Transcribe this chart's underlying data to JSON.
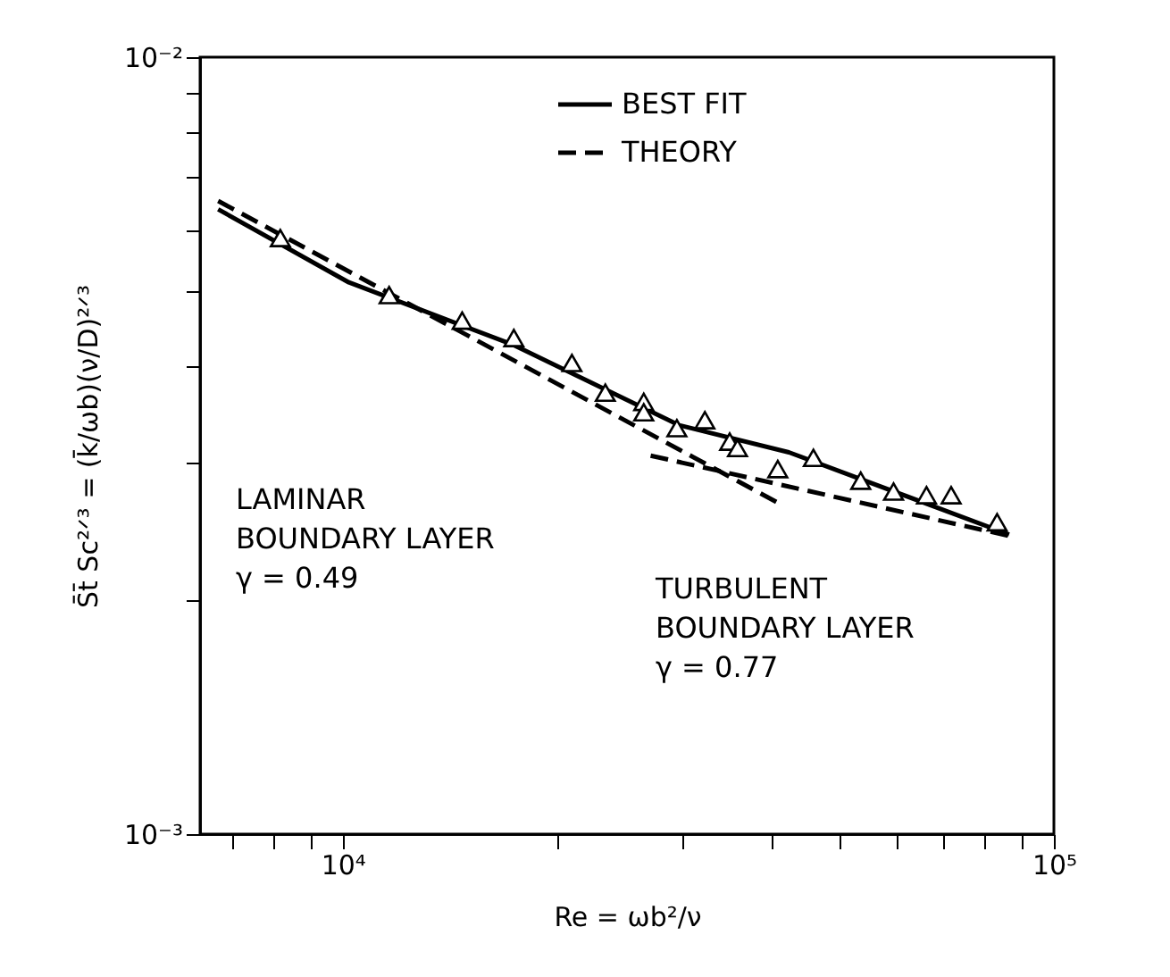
{
  "chart_data": {
    "type": "scatter",
    "xlabel": "Re = ωb²/ν",
    "ylabel": "S̄t̄ Sc²ᐟ³ = (k̄/ωb)(ν/D)²ᐟ³",
    "log": "xy",
    "xlim": [
      6300,
      100000
    ],
    "xticks": [
      {
        "value": 7000,
        "label": null
      },
      {
        "value": 8000,
        "label": null
      },
      {
        "value": 9000,
        "label": null
      },
      {
        "value": 10000,
        "label": "10⁴"
      },
      {
        "value": 20000,
        "label": null
      },
      {
        "value": 30000,
        "label": null
      },
      {
        "value": 40000,
        "label": null
      },
      {
        "value": 50000,
        "label": null
      },
      {
        "value": 60000,
        "label": null
      },
      {
        "value": 70000,
        "label": null
      },
      {
        "value": 80000,
        "label": null
      },
      {
        "value": 90000,
        "label": null
      },
      {
        "value": 100000,
        "label": "10⁵"
      }
    ],
    "ylim": [
      0.001,
      0.01
    ],
    "yticks": [
      {
        "value": 0.001,
        "label": "10⁻³"
      },
      {
        "value": 0.002,
        "label": null
      },
      {
        "value": 0.003,
        "label": null
      },
      {
        "value": 0.004,
        "label": null
      },
      {
        "value": 0.005,
        "label": null
      },
      {
        "value": 0.006,
        "label": null
      },
      {
        "value": 0.007,
        "label": null
      },
      {
        "value": 0.008,
        "label": null
      },
      {
        "value": 0.009,
        "label": null
      },
      {
        "value": 0.01,
        "label": "10⁻²"
      }
    ],
    "grid": false,
    "legend": "top",
    "series": [
      {
        "color": "#000000",
        "marker": "triangle",
        "x": [
          8170,
          11620,
          14720,
          17400,
          21000,
          23400,
          26500,
          26500,
          29500,
          32300,
          35000,
          35900,
          40900,
          45900,
          53500,
          59500,
          66200,
          71700,
          83200
        ],
        "values": [
          0.00585,
          0.00494,
          0.00458,
          0.00435,
          0.00404,
          0.0037,
          0.0036,
          0.00349,
          0.00333,
          0.00341,
          0.0032,
          0.00314,
          0.00295,
          0.00305,
          0.00285,
          0.00276,
          0.00273,
          0.00273,
          0.00252
        ]
      },
      {
        "type": "line",
        "name": "BEST FIT",
        "color": "#000000",
        "line_style": "solid",
        "x": [
          6680,
          10200,
          17400,
          29700,
          42400,
          86500
        ],
        "values": [
          0.00637,
          0.00513,
          0.00426,
          0.00336,
          0.0031,
          0.00243
        ]
      },
      {
        "type": "line",
        "name": "THEORY",
        "color": "#000000",
        "line_style": "dashed",
        "x": [
          6680,
          40900
        ],
        "values": [
          0.00653,
          0.00267
        ]
      },
      {
        "type": "line",
        "color": "#000000",
        "line_style": "dashed",
        "x": [
          27100,
          86500
        ],
        "values": [
          0.00307,
          0.00242
        ]
      }
    ],
    "annotations": [
      "LAMINAR\nBOUNDARY LAYER\nγ = 0.49",
      "TURBULENT\nBOUNDARY LAYER\nγ = 0.77"
    ]
  }
}
